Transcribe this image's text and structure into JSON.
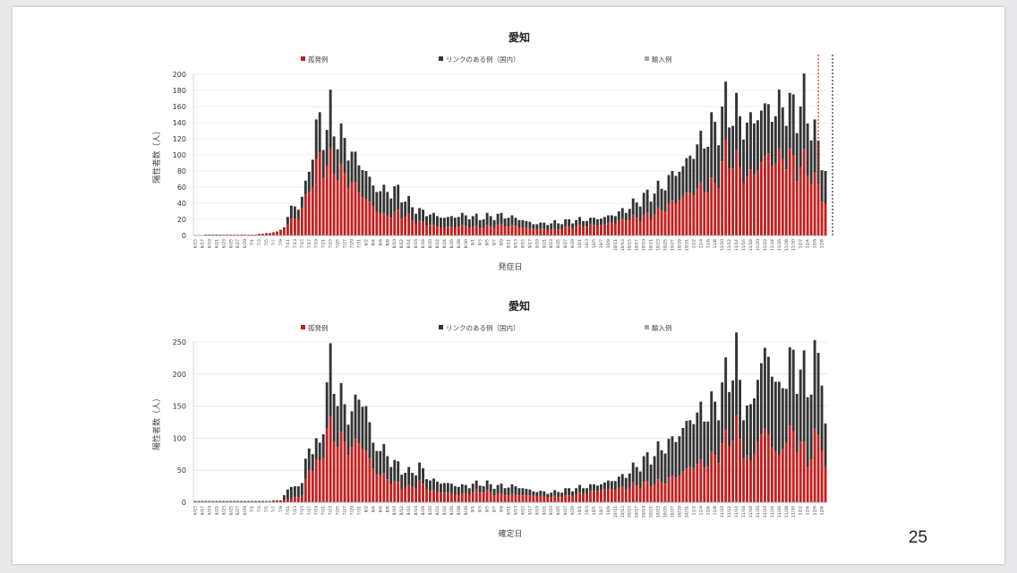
{
  "page": {
    "number": "25"
  },
  "legend": {
    "solo": "孤発例",
    "linked": "リンクのある例（国内）",
    "imported": "輸入例"
  },
  "colors": {
    "solo": "#c0201f",
    "linked": "#333333",
    "imported": "#a6a6a6"
  },
  "chart_data": [
    {
      "type": "bar",
      "stacked": true,
      "title": "愛知",
      "xlabel": "発症日",
      "ylabel": "陽性者数（人）",
      "ylim": [
        0,
        200
      ],
      "yticks": [
        0,
        20,
        40,
        60,
        80,
        100,
        120,
        140,
        160,
        180,
        200
      ],
      "x_start": "6/15",
      "x_end": "12/9",
      "tick_every": 2,
      "grid": true,
      "legend_position": "top",
      "series_names": [
        "孤発例",
        "リンクのある例（国内）",
        "輸入例"
      ],
      "markers": [
        {
          "category_index": 175,
          "color": "#d9281e"
        },
        {
          "category_index": 179,
          "color": "#1f2a44"
        }
      ],
      "knots": [
        [
          0,
          0,
          0
        ],
        [
          5,
          0,
          1
        ],
        [
          10,
          1,
          1
        ],
        [
          15,
          1,
          1
        ],
        [
          19,
          2,
          2
        ],
        [
          21,
          3,
          3
        ],
        [
          23,
          5,
          5
        ],
        [
          25,
          8,
          10
        ],
        [
          27,
          20,
          35
        ],
        [
          29,
          22,
          35
        ],
        [
          31,
          45,
          60
        ],
        [
          33,
          70,
          110
        ],
        [
          35,
          95,
          140
        ],
        [
          37,
          85,
          130
        ],
        [
          38,
          90,
          150
        ],
        [
          40,
          80,
          125
        ],
        [
          43,
          70,
          110
        ],
        [
          45,
          60,
          95
        ],
        [
          48,
          45,
          80
        ],
        [
          50,
          35,
          60
        ],
        [
          53,
          25,
          55
        ],
        [
          57,
          28,
          55
        ],
        [
          60,
          22,
          40
        ],
        [
          63,
          16,
          30
        ],
        [
          67,
          12,
          25
        ],
        [
          70,
          10,
          22
        ],
        [
          75,
          12,
          25
        ],
        [
          80,
          10,
          22
        ],
        [
          85,
          12,
          25
        ],
        [
          90,
          12,
          22
        ],
        [
          95,
          8,
          15
        ],
        [
          100,
          7,
          15
        ],
        [
          105,
          10,
          18
        ],
        [
          110,
          12,
          20
        ],
        [
          115,
          14,
          22
        ],
        [
          119,
          18,
          28
        ],
        [
          122,
          22,
          35
        ],
        [
          125,
          22,
          45
        ],
        [
          128,
          25,
          52
        ],
        [
          131,
          32,
          60
        ],
        [
          134,
          40,
          75
        ],
        [
          137,
          48,
          85
        ],
        [
          140,
          55,
          105
        ],
        [
          143,
          60,
          120
        ],
        [
          146,
          62,
          135
        ],
        [
          149,
          100,
          160
        ],
        [
          152,
          90,
          150
        ],
        [
          155,
          70,
          135
        ],
        [
          158,
          85,
          150
        ],
        [
          161,
          100,
          160
        ],
        [
          163,
          90,
          150
        ],
        [
          165,
          100,
          168
        ],
        [
          167,
          95,
          155
        ],
        [
          169,
          85,
          160
        ],
        [
          171,
          88,
          165
        ],
        [
          173,
          75,
          140
        ],
        [
          175,
          60,
          110
        ],
        [
          177,
          40,
          80
        ],
        [
          178,
          20,
          50
        ],
        [
          179,
          3,
          8
        ]
      ]
    },
    {
      "type": "bar",
      "stacked": true,
      "title": "愛知",
      "xlabel": "確定日",
      "ylabel": "陽性者数（人）",
      "ylim": [
        0,
        250
      ],
      "yticks": [
        0,
        50,
        100,
        150,
        200,
        250
      ],
      "x_start": "6/15",
      "x_end": "12/9",
      "tick_every": 2,
      "grid": true,
      "legend_position": "top",
      "series_names": [
        "孤発例",
        "リンクのある例（国内）",
        "輸入例"
      ],
      "markers": [],
      "knots": [
        [
          0,
          1,
          2
        ],
        [
          20,
          1,
          2
        ],
        [
          24,
          2,
          3
        ],
        [
          26,
          5,
          20
        ],
        [
          30,
          10,
          30
        ],
        [
          32,
          55,
          90
        ],
        [
          35,
          60,
          85
        ],
        [
          37,
          115,
          185
        ],
        [
          38,
          110,
          205
        ],
        [
          40,
          100,
          175
        ],
        [
          42,
          90,
          145
        ],
        [
          44,
          85,
          140
        ],
        [
          46,
          95,
          165
        ],
        [
          48,
          80,
          150
        ],
        [
          50,
          50,
          90
        ],
        [
          53,
          40,
          80
        ],
        [
          56,
          30,
          60
        ],
        [
          60,
          22,
          45
        ],
        [
          63,
          30,
          55
        ],
        [
          66,
          18,
          35
        ],
        [
          70,
          15,
          30
        ],
        [
          75,
          12,
          25
        ],
        [
          80,
          18,
          30
        ],
        [
          85,
          12,
          25
        ],
        [
          90,
          12,
          25
        ],
        [
          95,
          10,
          18
        ],
        [
          100,
          8,
          15
        ],
        [
          105,
          10,
          20
        ],
        [
          110,
          15,
          25
        ],
        [
          115,
          20,
          30
        ],
        [
          120,
          22,
          40
        ],
        [
          125,
          28,
          60
        ],
        [
          130,
          30,
          80
        ],
        [
          135,
          40,
          100
        ],
        [
          140,
          58,
          135
        ],
        [
          143,
          60,
          140
        ],
        [
          146,
          70,
          150
        ],
        [
          149,
          95,
          190
        ],
        [
          152,
          115,
          225
        ],
        [
          154,
          80,
          150
        ],
        [
          156,
          60,
          140
        ],
        [
          158,
          100,
          200
        ],
        [
          160,
          110,
          230
        ],
        [
          162,
          95,
          215
        ],
        [
          164,
          65,
          165
        ],
        [
          166,
          110,
          210
        ],
        [
          168,
          100,
          215
        ],
        [
          170,
          95,
          210
        ],
        [
          172,
          60,
          180
        ],
        [
          174,
          100,
          220
        ],
        [
          176,
          95,
          215
        ],
        [
          178,
          15,
          30
        ]
      ]
    }
  ]
}
